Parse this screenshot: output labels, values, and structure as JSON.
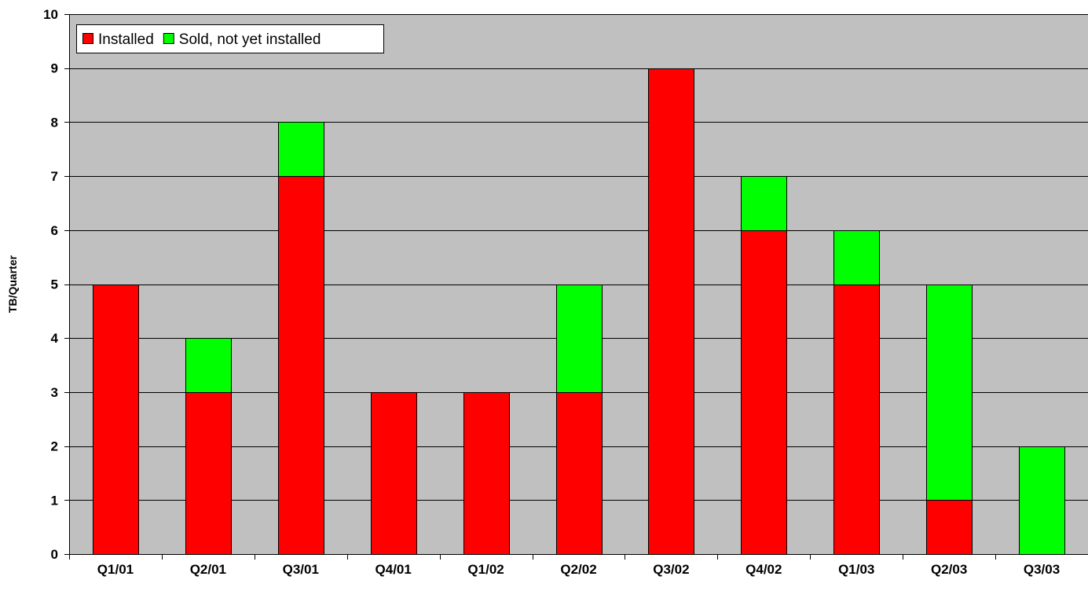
{
  "chart_data": {
    "type": "bar",
    "stacked": true,
    "title": "",
    "xlabel": "",
    "ylabel": "TB/Quarter",
    "ylim": [
      0,
      10
    ],
    "yticks": [
      0,
      1,
      2,
      3,
      4,
      5,
      6,
      7,
      8,
      9,
      10
    ],
    "grid": true,
    "legend_position": "top-left",
    "categories": [
      "Q1/01",
      "Q2/01",
      "Q3/01",
      "Q4/01",
      "Q1/02",
      "Q2/02",
      "Q3/02",
      "Q4/02",
      "Q1/03",
      "Q2/03",
      "Q3/03"
    ],
    "series": [
      {
        "name": "Installed",
        "color": "#ff0000",
        "values": [
          5,
          3,
          7,
          3,
          3,
          3,
          9,
          6,
          5,
          1,
          0
        ]
      },
      {
        "name": "Sold, not yet installed",
        "color": "#00ff00",
        "values": [
          0,
          1,
          1,
          0,
          0,
          2,
          0,
          1,
          1,
          4,
          2
        ]
      }
    ],
    "plot_background": "#c0c0c0",
    "gridline_color": "#000000"
  }
}
